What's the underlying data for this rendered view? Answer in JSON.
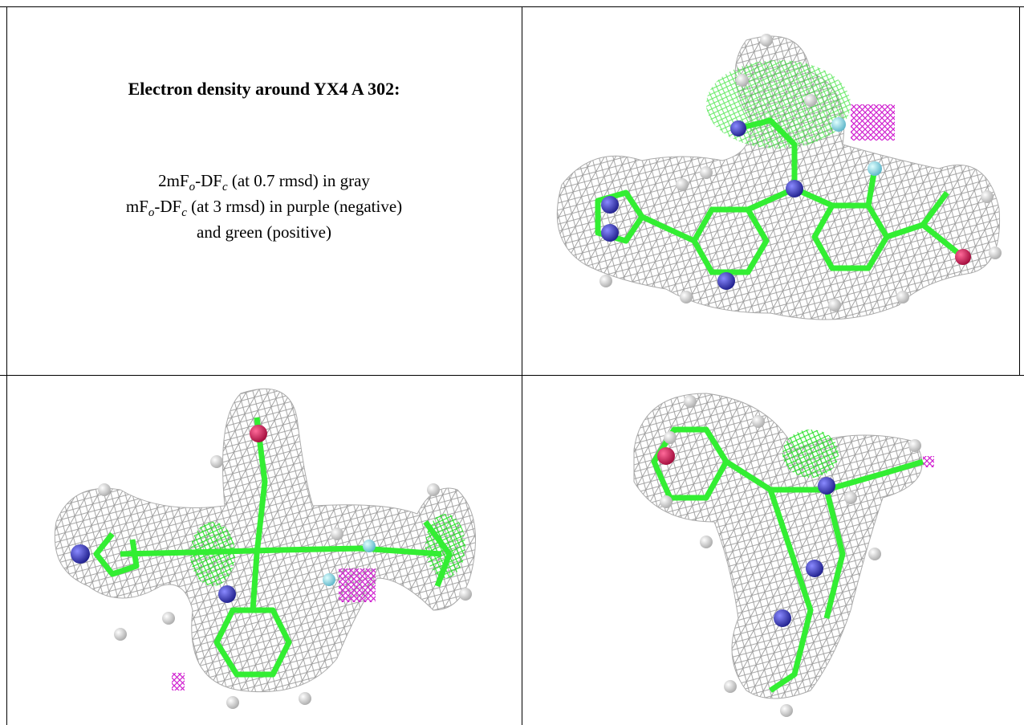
{
  "panel_text": {
    "title": "Electron density around YX4 A 302:",
    "caption_lines": [
      [
        {
          "text": "2mF"
        },
        {
          "sub": "o"
        },
        {
          "text": "-DF"
        },
        {
          "sub": "c"
        },
        {
          "text": " (at 0.7 rmsd) in gray"
        }
      ],
      [
        {
          "text": "mF"
        },
        {
          "sub": "o"
        },
        {
          "text": "-DF"
        },
        {
          "sub": "c"
        },
        {
          "text": " (at 3 rmsd) in purple (negative)"
        }
      ],
      [
        {
          "text": "and green (positive)"
        }
      ]
    ]
  }
}
